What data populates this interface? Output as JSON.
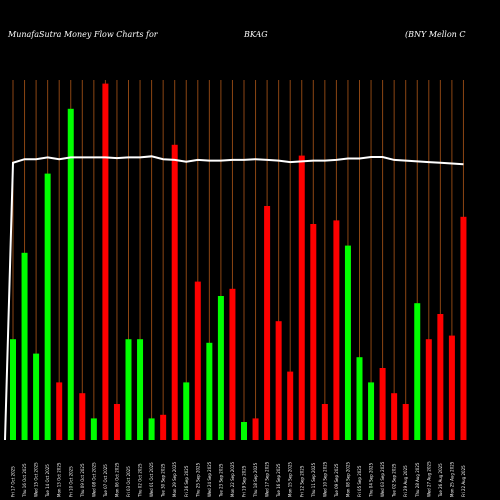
{
  "header": {
    "site": "MunafaSutra  Money Flow  Charts for",
    "symbol": "BKAG",
    "company": "(BNY Mellon  C"
  },
  "chart_data": {
    "type": "bar",
    "background": "#000000",
    "gridline_color": "#8b4513",
    "colors": {
      "up": "#00ff00",
      "down": "#ff0000",
      "line": "#ffffff"
    },
    "ylim": [
      0,
      100
    ],
    "categories": [
      "Fri 17 Oct 2025",
      "Thu 16 Oct 2025",
      "Wed 15 Oct 2025",
      "Tue 14 Oct 2025",
      "Mon 13 Oct 2025",
      "Fri 10 Oct 2025",
      "Thu 09 Oct 2025",
      "Wed 08 Oct 2025",
      "Tue 07 Oct 2025",
      "Mon 06 Oct 2025",
      "Fri 03 Oct 2025",
      "Thu 02 Oct 2025",
      "Wed 01 Oct 2025",
      "Tue 30 Sep 2025",
      "Mon 29 Sep 2025",
      "Fri 26 Sep 2025",
      "Thu 25 Sep 2025",
      "Wed 24 Sep 2025",
      "Tue 23 Sep 2025",
      "Mon 22 Sep 2025",
      "Fri 19 Sep 2025",
      "Thu 18 Sep 2025",
      "Wed 17 Sep 2025",
      "Tue 16 Sep 2025",
      "Mon 15 Sep 2025",
      "Fri 12 Sep 2025",
      "Thu 11 Sep 2025",
      "Wed 10 Sep 2025",
      "Tue 09 Sep 2025",
      "Mon 08 Sep 2025",
      "Fri 05 Sep 2025",
      "Thu 04 Sep 2025",
      "Wed 03 Sep 2025",
      "Tue 02 Sep 2025",
      "Fri 29 Aug 2025",
      "Thu 28 Aug 2025",
      "Wed 27 Aug 2025",
      "Tue 26 Aug 2025",
      "Mon 25 Aug 2025",
      "Fri 22 Aug 2025"
    ],
    "series": [
      {
        "values": [
          28,
          52,
          24,
          74,
          16,
          92,
          13,
          6,
          99,
          10,
          28,
          28,
          6,
          7,
          82,
          16,
          44,
          27,
          40,
          42,
          5,
          6,
          65,
          33,
          19,
          79,
          60,
          10,
          61,
          54,
          23,
          16,
          20,
          13,
          10,
          38,
          28,
          35,
          29,
          62
        ],
        "colors": [
          "g",
          "g",
          "g",
          "g",
          "r",
          "g",
          "r",
          "g",
          "r",
          "r",
          "g",
          "g",
          "g",
          "r",
          "r",
          "g",
          "r",
          "g",
          "g",
          "r",
          "g",
          "r",
          "r",
          "r",
          "r",
          "r",
          "r",
          "r",
          "r",
          "g",
          "g",
          "g",
          "r",
          "r",
          "r",
          "g",
          "r",
          "r",
          "r",
          "r"
        ]
      }
    ],
    "line_values": [
      77,
      78,
      78,
      78.5,
      78,
      78.5,
      78.5,
      78.5,
      78.5,
      78.3,
      78.5,
      78.5,
      78.8,
      78,
      77.8,
      77.3,
      77.8,
      77.6,
      77.6,
      77.8,
      77.8,
      78,
      77.8,
      77.6,
      77.2,
      77.4,
      77.6,
      77.6,
      77.8,
      78.2,
      78.2,
      78.6,
      78.6,
      77.8,
      77.6,
      77.4,
      77.2,
      77,
      76.8,
      76.6
    ]
  }
}
